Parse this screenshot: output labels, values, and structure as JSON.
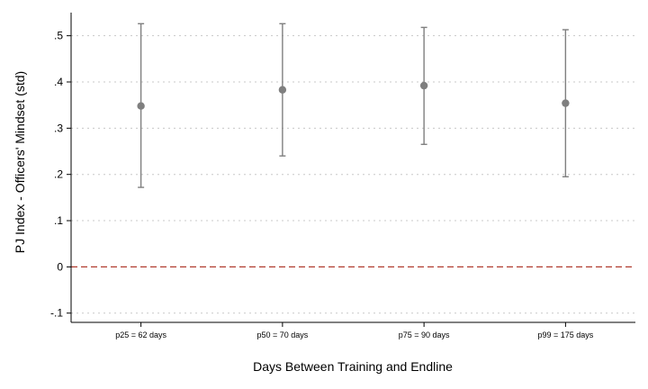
{
  "chart_data": {
    "type": "scatter",
    "title": "",
    "xlabel": "Days Between Training and Endline",
    "ylabel": "PJ Index - Officers' Mindset (std)",
    "ylim": [
      -0.12,
      0.55
    ],
    "yticks": [
      {
        "value": -0.1,
        "label": "-.1"
      },
      {
        "value": 0,
        "label": "0"
      },
      {
        "value": 0.1,
        "label": ".1"
      },
      {
        "value": 0.2,
        "label": ".2"
      },
      {
        "value": 0.3,
        "label": ".3"
      },
      {
        "value": 0.4,
        "label": ".4"
      },
      {
        "value": 0.5,
        "label": ".5"
      }
    ],
    "categories": [
      "p25 = 62 days",
      "p50 = 70 days",
      "p75 = 90 days",
      "p99 = 175 days"
    ],
    "series": [
      {
        "values": [
          0.348,
          0.383,
          0.392,
          0.354
        ],
        "ci_low": [
          0.172,
          0.24,
          0.265,
          0.195
        ],
        "ci_high": [
          0.526,
          0.526,
          0.518,
          0.513
        ]
      }
    ],
    "reference_line": {
      "value": 0,
      "style": "dashed",
      "color": "#b03a2e"
    },
    "grid": true,
    "colors": {
      "marker": "#7f7f7f",
      "errorbar": "#7f7f7f",
      "grid": "#c8c8c8",
      "axis": "#000000"
    }
  }
}
